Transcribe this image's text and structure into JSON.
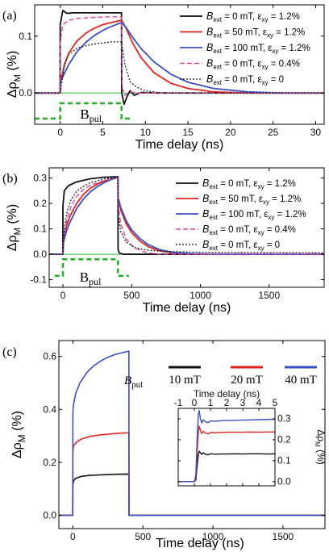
{
  "chart_data": [
    {
      "type": "line",
      "panel": "(a)",
      "xlabel": "Time delay (ns)",
      "ylabel": "Δρ",
      "ylabel_sub": "M",
      "ylabel_unit": "(%)",
      "xlim": [
        -3,
        31
      ],
      "ylim": [
        -0.055,
        0.155
      ],
      "xticks": [
        0,
        5,
        10,
        15,
        20,
        25,
        30
      ],
      "xtick_labels": [
        "0",
        "5",
        "10",
        "15",
        "20",
        "25",
        "30"
      ],
      "yticks": [
        0.0,
        0.1
      ],
      "ytick_labels": [
        "0.0",
        "0.1"
      ],
      "pulse_label": "B",
      "pulse_label_sub": "pul",
      "pulse": {
        "x_on": 0,
        "x_off": 7.2,
        "low": -0.045,
        "high": -0.018,
        "x_start": -3,
        "x_end": 8.5
      },
      "series": [
        {
          "legend": {
            "a": "B",
            "a_sub": "ext",
            "b": " = 0 mT, ε",
            "b_sub": "xy",
            "c": " = 1.2%"
          },
          "color": "#111111",
          "dash": "",
          "width": 1.8,
          "x": [
            -3,
            -0.02,
            0.0,
            0.3,
            0.8,
            1.5,
            3,
            5,
            7.2,
            7.22,
            7.5,
            7.8,
            8.2,
            8.7,
            9.5,
            11,
            13,
            31
          ],
          "y": [
            0,
            0,
            0.12,
            0.145,
            0.14,
            0.141,
            0.141,
            0.141,
            0.141,
            0.0,
            -0.02,
            -0.008,
            0.004,
            -0.004,
            0.001,
            0,
            0,
            0
          ]
        },
        {
          "legend": {
            "a": "B",
            "a_sub": "ext",
            "b": " = 50 mT, ε",
            "b_sub": "xy",
            "c": " = 1.2%"
          },
          "color": "#e0241c",
          "dash": "",
          "width": 1.8,
          "x": [
            -3,
            0,
            0.05,
            0.5,
            1,
            2,
            3,
            4,
            5,
            6,
            7.2,
            7.7,
            8.5,
            9.5,
            11,
            13,
            15,
            18,
            22,
            31
          ],
          "y": [
            0,
            0,
            0.02,
            0.05,
            0.07,
            0.092,
            0.105,
            0.114,
            0.12,
            0.124,
            0.128,
            0.115,
            0.088,
            0.062,
            0.036,
            0.017,
            0.008,
            0.002,
            0,
            0
          ]
        },
        {
          "legend": {
            "a": "B",
            "a_sub": "ext",
            "b": " = 100 mT, ε",
            "b_sub": "xy",
            "c": " = 1.2%"
          },
          "color": "#3b4fc4",
          "dash": "",
          "width": 1.8,
          "x": [
            -3,
            0,
            0.05,
            0.5,
            1,
            2,
            3,
            4,
            5,
            6,
            7.2,
            7.7,
            8.5,
            9.5,
            11,
            13,
            15,
            18,
            22,
            26,
            31
          ],
          "y": [
            0,
            0,
            0.02,
            0.035,
            0.05,
            0.073,
            0.089,
            0.101,
            0.11,
            0.117,
            0.124,
            0.116,
            0.098,
            0.078,
            0.055,
            0.033,
            0.019,
            0.008,
            0.002,
            0,
            0
          ]
        },
        {
          "legend": {
            "a": "B",
            "a_sub": "ext",
            "b": " = 0 mT, ε",
            "b_sub": "xy",
            "c": " = 0.4%"
          },
          "color": "#d6479a",
          "dash": "6,3",
          "width": 1.4,
          "x": [
            -3,
            -0.02,
            0.0,
            0.3,
            1,
            2,
            4,
            6,
            7.2,
            7.25,
            7.6,
            8.2,
            9,
            11,
            31
          ],
          "y": [
            0,
            0,
            0.09,
            0.12,
            0.128,
            0.131,
            0.133,
            0.134,
            0.134,
            0.01,
            -0.004,
            0.002,
            0,
            0,
            0
          ]
        },
        {
          "legend": {
            "a": "B",
            "a_sub": "ext",
            "b": " = 0 mT, ε",
            "b_sub": "xy",
            "c": " = 0"
          },
          "color": "#111111",
          "dash": "2,2",
          "width": 1.2,
          "x": [
            -3,
            0,
            0.5,
            1,
            2,
            3,
            4,
            5,
            6,
            7.2,
            7.6,
            8.2,
            9,
            10,
            11.5,
            13,
            31
          ],
          "y": [
            0,
            0,
            0.05,
            0.068,
            0.079,
            0.083,
            0.086,
            0.088,
            0.09,
            0.09,
            0.05,
            0.02,
            0.01,
            0.004,
            0.001,
            0,
            0
          ]
        }
      ]
    },
    {
      "type": "line",
      "panel": "(b)",
      "xlabel": "Time delay (ns)",
      "ylabel": "Δρ",
      "ylabel_sub": "M",
      "ylabel_unit": "(%)",
      "xlim": [
        -100,
        1900
      ],
      "ylim": [
        -0.13,
        0.34
      ],
      "xticks": [
        0,
        500,
        1000,
        1500
      ],
      "xtick_labels": [
        "0",
        "500",
        "1000",
        "1500"
      ],
      "yticks": [
        -0.1,
        0.0,
        0.1,
        0.2,
        0.3
      ],
      "ytick_labels": [
        "-0.1",
        "0.0",
        "0.1",
        "0.2",
        "0.3"
      ],
      "pulse_label": "B",
      "pulse_label_sub": "pul",
      "pulse": {
        "x_on": 0,
        "x_off": 400,
        "low": -0.085,
        "high": -0.02,
        "x_start": -60,
        "x_end": 480
      },
      "series": [
        {
          "legend": {
            "a": "B",
            "a_sub": "ext",
            "b": " = 0 mT, ε",
            "b_sub": "xy",
            "c": " = 1.2%"
          },
          "color": "#111111",
          "dash": "",
          "width": 1.8,
          "x": [
            -100,
            -1,
            0,
            10,
            40,
            100,
            200,
            300,
            400,
            401,
            410,
            440,
            480,
            1900
          ],
          "y": [
            0,
            0,
            0.19,
            0.25,
            0.27,
            0.285,
            0.297,
            0.303,
            0.305,
            0.02,
            0.005,
            0.0,
            0,
            0
          ]
        },
        {
          "legend": {
            "a": "B",
            "a_sub": "ext",
            "b": " = 50 mT, ε",
            "b_sub": "xy",
            "c": " = 1.2%"
          },
          "color": "#e0241c",
          "dash": "",
          "width": 1.8,
          "x": [
            -100,
            0,
            5,
            25,
            50,
            100,
            150,
            200,
            250,
            300,
            350,
            400,
            401,
            420,
            460,
            500,
            560,
            620,
            700,
            800,
            950,
            1100,
            1900
          ],
          "y": [
            0,
            0,
            0.06,
            0.11,
            0.148,
            0.2,
            0.236,
            0.26,
            0.276,
            0.288,
            0.296,
            0.302,
            0.22,
            0.175,
            0.12,
            0.085,
            0.052,
            0.03,
            0.014,
            0.005,
            0.001,
            0,
            0
          ]
        },
        {
          "legend": {
            "a": "B",
            "a_sub": "ext",
            "b": " = 100 mT, ε",
            "b_sub": "xy",
            "c": " = 1.2%"
          },
          "color": "#3b4fc4",
          "dash": "",
          "width": 1.8,
          "x": [
            -100,
            0,
            5,
            25,
            50,
            100,
            150,
            200,
            250,
            300,
            350,
            400,
            401,
            420,
            460,
            500,
            560,
            620,
            700,
            800,
            950,
            1100,
            1900
          ],
          "y": [
            0,
            0,
            0.05,
            0.09,
            0.125,
            0.18,
            0.218,
            0.246,
            0.266,
            0.282,
            0.294,
            0.303,
            0.225,
            0.185,
            0.132,
            0.096,
            0.062,
            0.038,
            0.019,
            0.007,
            0.002,
            0,
            0
          ]
        },
        {
          "legend": {
            "a": "B",
            "a_sub": "ext",
            "b": " = 0 mT, ε",
            "b_sub": "xy",
            "c": " = 0.4%"
          },
          "color": "#d6479a",
          "dash": "6,3",
          "width": 1.4,
          "x": [
            -100,
            0,
            10,
            30,
            60,
            100,
            150,
            200,
            300,
            400,
            401,
            420,
            460,
            520,
            600,
            700,
            1900
          ],
          "y": [
            0,
            0,
            0.08,
            0.14,
            0.19,
            0.228,
            0.256,
            0.272,
            0.29,
            0.3,
            0.2,
            0.12,
            0.06,
            0.025,
            0.008,
            0,
            0
          ]
        },
        {
          "legend": {
            "a": "B",
            "a_sub": "ext",
            "b": " = 0 mT, ε",
            "b_sub": "xy",
            "c": " = 0"
          },
          "color": "#111111",
          "dash": "2,2",
          "width": 1.2,
          "x": [
            -100,
            0,
            10,
            30,
            60,
            100,
            150,
            200,
            300,
            400,
            401,
            420,
            460,
            520,
            600,
            700,
            850,
            1000,
            1900
          ],
          "y": [
            0,
            0,
            0.1,
            0.17,
            0.215,
            0.248,
            0.268,
            0.282,
            0.296,
            0.303,
            0.16,
            0.09,
            0.048,
            0.027,
            0.017,
            0.012,
            0.01,
            0.008,
            0.006
          ]
        }
      ]
    },
    {
      "type": "line",
      "panel": "(c)",
      "xlabel": "Time delay (ns)",
      "ylabel": "Δρ",
      "ylabel_sub": "M",
      "ylabel_unit": "(%)",
      "xlim": [
        -100,
        1800
      ],
      "ylim": [
        -0.05,
        0.66
      ],
      "xticks": [
        0,
        500,
        1000,
        1500
      ],
      "xtick_labels": [
        "0",
        "500",
        "1000",
        "1500"
      ],
      "yticks": [
        0.0,
        0.2,
        0.4,
        0.6
      ],
      "ytick_labels": [
        "0.0",
        "0.2",
        "0.4",
        "0.6"
      ],
      "legend_title": "B",
      "legend_title_sub": "pul",
      "series": [
        {
          "name": "10 mT",
          "color": "#111111",
          "width": 1.6,
          "x": [
            -100,
            -1,
            0,
            5,
            20,
            60,
            120,
            200,
            300,
            400,
            401,
            430,
            1800
          ],
          "y": [
            0,
            0,
            0.115,
            0.13,
            0.14,
            0.147,
            0.151,
            0.153,
            0.155,
            0.156,
            0.0,
            0,
            0
          ]
        },
        {
          "name": "20 mT",
          "color": "#e0241c",
          "width": 1.6,
          "x": [
            -100,
            -1,
            0,
            5,
            20,
            60,
            120,
            200,
            300,
            400,
            401,
            430,
            1800
          ],
          "y": [
            0,
            0,
            0.245,
            0.262,
            0.274,
            0.288,
            0.298,
            0.304,
            0.309,
            0.312,
            0.0,
            0,
            0
          ]
        },
        {
          "name": "40 mT",
          "color": "#3b4fc4",
          "width": 1.6,
          "x": [
            -100,
            -1,
            0,
            5,
            20,
            50,
            100,
            150,
            200,
            250,
            300,
            350,
            400,
            401,
            430,
            1800
          ],
          "y": [
            0,
            0,
            0.39,
            0.42,
            0.46,
            0.5,
            0.54,
            0.565,
            0.583,
            0.597,
            0.607,
            0.614,
            0.62,
            0.0,
            0,
            0
          ]
        }
      ],
      "inset": {
        "xlabel": "Time delay (ns)",
        "ylabel": "Δρ",
        "ylabel_sub": "M",
        "ylabel_unit": "(%)",
        "xlim": [
          -1,
          5
        ],
        "ylim": [
          -0.02,
          0.35
        ],
        "xticks": [
          -1,
          0,
          1,
          2,
          3,
          4,
          5
        ],
        "xtick_labels": [
          "-1",
          "0",
          "1",
          "2",
          "3",
          "4",
          "5"
        ],
        "yticks": [
          0.0,
          0.1,
          0.2,
          0.3
        ],
        "ytick_labels": [
          "0.0",
          "0.1",
          "0.2",
          "0.3"
        ],
        "series": [
          {
            "name": "10 mT",
            "color": "#111111",
            "x": [
              -1,
              0.02,
              0.1,
              0.18,
              0.25,
              0.3,
              0.38,
              0.46,
              0.55,
              0.7,
              0.85,
              1.0,
              1.3,
              1.6,
              2.0,
              2.5,
              3,
              3.5,
              4,
              4.5,
              5
            ],
            "y": [
              0,
              0,
              0.01,
              0.08,
              0.13,
              0.145,
              0.138,
              0.13,
              0.138,
              0.13,
              0.128,
              0.133,
              0.131,
              0.132,
              0.132,
              0.133,
              0.132,
              0.133,
              0.133,
              0.132,
              0.133
            ]
          },
          {
            "name": "20 mT",
            "color": "#e0241c",
            "x": [
              -1,
              0.02,
              0.1,
              0.18,
              0.25,
              0.3,
              0.38,
              0.46,
              0.55,
              0.7,
              0.85,
              1.0,
              1.3,
              1.6,
              2.0,
              2.5,
              3,
              3.5,
              4,
              4.5,
              5
            ],
            "y": [
              0,
              0,
              0.02,
              0.15,
              0.24,
              0.265,
              0.245,
              0.23,
              0.24,
              0.232,
              0.228,
              0.235,
              0.233,
              0.235,
              0.236,
              0.236,
              0.236,
              0.237,
              0.236,
              0.237,
              0.237
            ]
          },
          {
            "name": "40 mT",
            "color": "#3b4fc4",
            "x": [
              -1,
              0.02,
              0.1,
              0.18,
              0.25,
              0.3,
              0.38,
              0.46,
              0.55,
              0.7,
              0.85,
              1.0,
              1.3,
              1.6,
              2.0,
              2.5,
              3,
              3.5,
              4,
              4.5,
              5
            ],
            "y": [
              0,
              0,
              0.04,
              0.22,
              0.32,
              0.34,
              0.3,
              0.28,
              0.295,
              0.285,
              0.282,
              0.29,
              0.288,
              0.291,
              0.292,
              0.293,
              0.294,
              0.295,
              0.296,
              0.297,
              0.298
            ]
          }
        ]
      }
    }
  ]
}
